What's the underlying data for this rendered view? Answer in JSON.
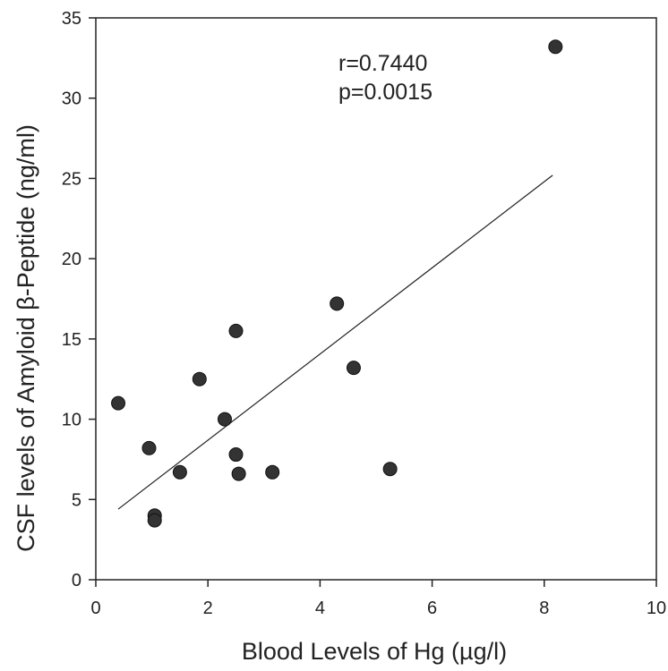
{
  "chart_data": {
    "type": "scatter",
    "title": "",
    "xlabel": "Blood Levels of Hg (µg/l)",
    "ylabel": "CSF levels of Amyloid β-Peptide (ng/ml)",
    "xlim": [
      0,
      10
    ],
    "ylim": [
      0,
      35
    ],
    "xticks": [
      "0",
      "2",
      "4",
      "6",
      "8",
      "10"
    ],
    "yticks": [
      "0",
      "5",
      "10",
      "15",
      "20",
      "25",
      "30",
      "35"
    ],
    "grid": false,
    "legend": "none",
    "annotations": [
      "r=0.7440",
      "p=0.0015"
    ],
    "colors": {
      "points": "#333333",
      "axis": "#222222",
      "fit_line": "#222222"
    },
    "series": [
      {
        "points": [
          {
            "x": 0.4,
            "y": 11.0
          },
          {
            "x": 0.95,
            "y": 8.2
          },
          {
            "x": 1.05,
            "y": 4.0
          },
          {
            "x": 1.05,
            "y": 3.7
          },
          {
            "x": 1.5,
            "y": 6.7
          },
          {
            "x": 1.85,
            "y": 12.5
          },
          {
            "x": 2.3,
            "y": 10.0
          },
          {
            "x": 2.5,
            "y": 15.5
          },
          {
            "x": 2.5,
            "y": 7.8
          },
          {
            "x": 2.55,
            "y": 6.6
          },
          {
            "x": 3.15,
            "y": 6.7
          },
          {
            "x": 4.3,
            "y": 17.2
          },
          {
            "x": 4.6,
            "y": 13.2
          },
          {
            "x": 5.25,
            "y": 6.9
          },
          {
            "x": 8.2,
            "y": 33.2
          }
        ]
      }
    ],
    "fit_line": {
      "x": [
        0.4,
        8.15
      ],
      "y": [
        4.4,
        25.2
      ]
    }
  }
}
